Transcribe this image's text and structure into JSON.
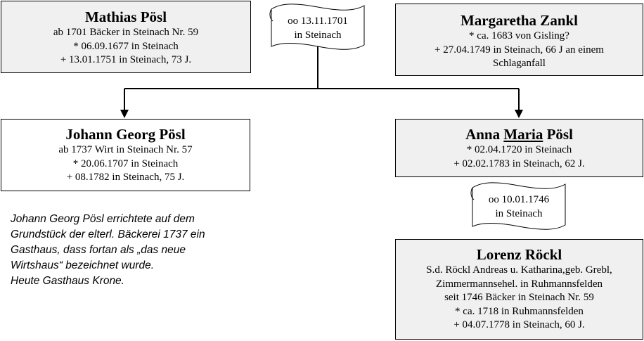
{
  "persons": {
    "mathias": {
      "name": "Mathias Pösl",
      "lines": [
        "ab 1701 Bäcker in Steinach Nr. 59",
        "* 06.09.1677 in Steinach",
        "+ 13.01.1751 in Steinach, 73 J."
      ]
    },
    "margaretha": {
      "name": "Margaretha Zankl",
      "lines": [
        "* ca. 1683 von Gisling?",
        "+ 27.04.1749 in Steinach, 66 J an einem",
        "Schlaganfall"
      ]
    },
    "johann": {
      "name": "Johann Georg Pösl",
      "lines": [
        "ab 1737 Wirt in Steinach Nr. 57",
        "* 20.06.1707 in Steinach",
        "+ 08.1782 in Steinach, 75 J."
      ]
    },
    "anna": {
      "name_first": "Anna",
      "name_underlined": "Maria",
      "name_last": "Pösl",
      "lines": [
        "* 02.04.1720 in Steinach",
        "+ 02.02.1783 in Steinach, 62 J."
      ]
    },
    "lorenz": {
      "name": "Lorenz Röckl",
      "lines": [
        "S.d. Röckl Andreas u. Katharina,geb. Grebl,",
        "Zimmermannsehel. in Ruhmannsfelden",
        "seit 1746 Bäcker in Steinach Nr. 59",
        "* ca. 1718 in Ruhmannsfelden",
        "+ 04.07.1778 in Steinach, 60 J."
      ]
    }
  },
  "marriages": {
    "parents": {
      "date": "oo 13.11.1701",
      "place": "in Steinach"
    },
    "anna_lorenz": {
      "date": "oo 10.01.1746",
      "place": "in Steinach"
    }
  },
  "note": {
    "lines": [
      "Johann Georg Pösl errichtete auf dem",
      "Grundstück der elterl. Bäckerei 1737 ein",
      "Gasthaus, dass fortan als „das neue",
      "Wirtshaus“ bezeichnet wurde.",
      "Heute Gasthaus Krone."
    ]
  },
  "colors": {
    "box_gray": "#f0f0f0",
    "box_white": "#ffffff",
    "line": "#000000"
  }
}
